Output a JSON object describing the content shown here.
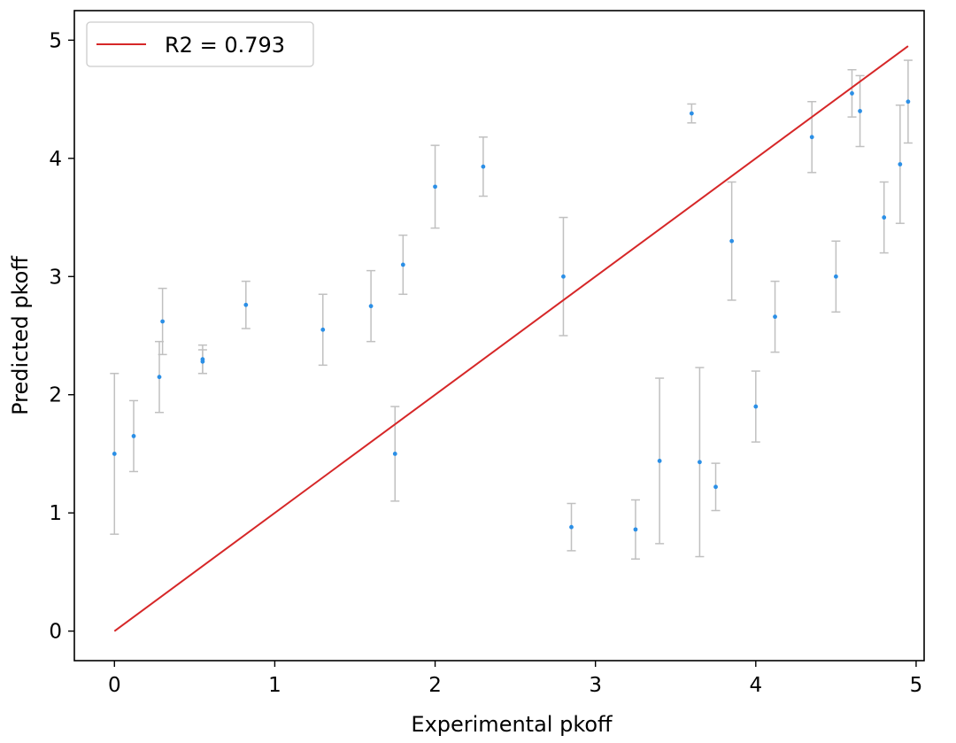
{
  "chart_data": {
    "type": "scatter",
    "title": "",
    "xlabel": "Experimental pkoff",
    "ylabel": "Predicted pkoff",
    "xlim": [
      -0.25,
      5.05
    ],
    "ylim": [
      -0.25,
      5.25
    ],
    "xticks": [
      0,
      1,
      2,
      3,
      4,
      5
    ],
    "yticks": [
      0,
      1,
      2,
      3,
      4,
      5
    ],
    "x_tick_labels": [
      "0",
      "1",
      "2",
      "3",
      "4",
      "5"
    ],
    "y_tick_labels": [
      "0",
      "1",
      "2",
      "3",
      "4",
      "5"
    ],
    "grid": false,
    "legend": {
      "position": "top-left",
      "entries": [
        "R2 = 0.793"
      ]
    },
    "colors": {
      "points": "#2b8fe6",
      "error_bars": "#c0c0c0",
      "fit_line": "#d62728"
    },
    "fit_line": {
      "label": "R2 = 0.793",
      "x": [
        0,
        4.95
      ],
      "y": [
        0,
        4.95
      ]
    },
    "series": [
      {
        "points": [
          [
            0.0,
            1.5,
            0.68
          ],
          [
            0.12,
            1.65,
            0.3
          ],
          [
            0.3,
            2.62,
            0.28
          ],
          [
            0.28,
            2.15,
            0.3
          ],
          [
            0.55,
            2.3,
            0.12
          ],
          [
            0.82,
            2.76,
            0.2
          ],
          [
            1.3,
            2.55,
            0.3
          ],
          [
            1.8,
            3.1,
            0.25
          ],
          [
            2.0,
            3.76,
            0.35
          ],
          [
            2.3,
            3.93,
            0.25
          ],
          [
            3.6,
            4.38,
            0.08
          ],
          [
            4.65,
            4.4,
            0.3
          ],
          [
            4.5,
            3.0,
            0.3
          ],
          [
            4.0,
            1.9,
            0.3
          ],
          [
            3.25,
            0.86,
            0.25
          ],
          [
            3.75,
            1.22,
            0.2
          ],
          [
            3.65,
            1.43,
            0.8
          ],
          [
            3.4,
            1.44,
            0.7
          ],
          [
            4.12,
            2.66,
            0.3
          ],
          [
            2.85,
            0.88,
            0.2
          ],
          [
            4.95,
            4.48,
            0.35
          ],
          [
            4.9,
            3.95,
            0.5
          ],
          [
            4.6,
            4.55,
            0.2
          ],
          [
            4.8,
            3.5,
            0.3
          ],
          [
            4.35,
            4.18,
            0.3
          ],
          [
            0.55,
            2.28,
            0.1
          ],
          [
            1.6,
            2.75,
            0.3
          ],
          [
            1.75,
            1.5,
            0.4
          ],
          [
            2.8,
            3.0,
            0.5
          ],
          [
            3.85,
            3.3,
            0.5
          ]
        ]
      }
    ]
  }
}
